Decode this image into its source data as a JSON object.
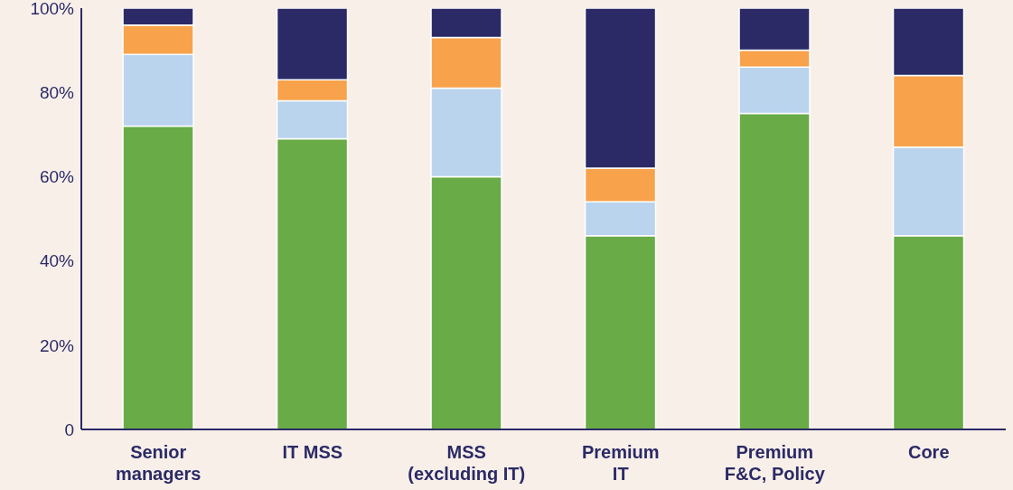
{
  "chart_data": {
    "type": "bar",
    "stacked": true,
    "categories": [
      "Senior managers",
      "IT MSS",
      "MSS (excluding IT)",
      "Premium IT",
      "Premium F&C, Policy",
      "Core"
    ],
    "series": [
      {
        "color": "#69ab46",
        "values": [
          72,
          69,
          60,
          46,
          75,
          46
        ]
      },
      {
        "color": "#bad4ee",
        "values": [
          17,
          9,
          21,
          8,
          11,
          21
        ]
      },
      {
        "color": "#f9a24c",
        "values": [
          7,
          5,
          12,
          8,
          4,
          17
        ]
      },
      {
        "color": "#2b2a66",
        "values": [
          4,
          17,
          7,
          38,
          10,
          16
        ]
      }
    ],
    "ylim": [
      0,
      100
    ],
    "yticks": [
      {
        "value": 0,
        "label": "0"
      },
      {
        "value": 20,
        "label": "20%"
      },
      {
        "value": 40,
        "label": "40%"
      },
      {
        "value": 60,
        "label": "60%"
      },
      {
        "value": 80,
        "label": "80%"
      },
      {
        "value": 100,
        "label": "100%"
      }
    ],
    "grid": false,
    "legend": false
  }
}
